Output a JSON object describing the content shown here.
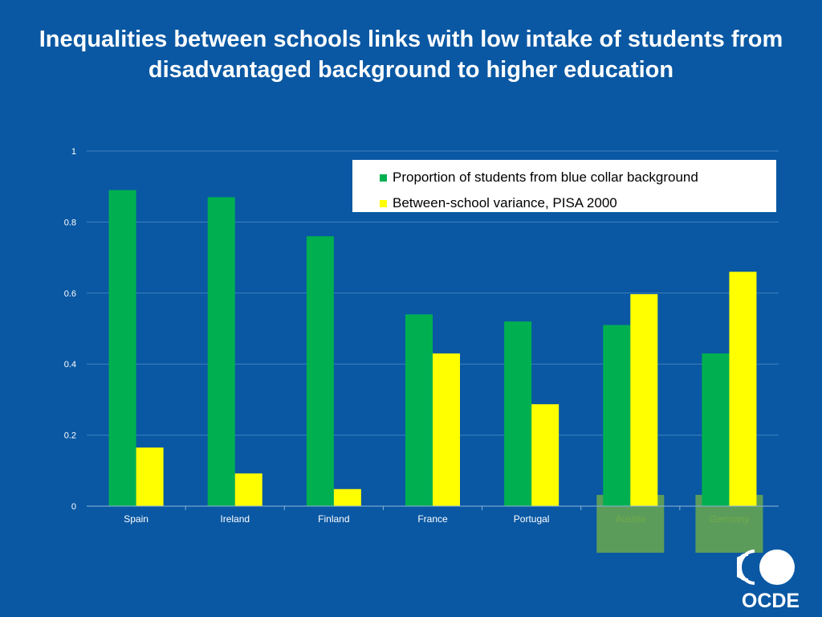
{
  "title": "Inequalities between schools links with low intake of students from disadvantaged background to higher education",
  "colors": {
    "background": "#0a58a3",
    "series_green": "#00b050",
    "series_yellow": "#ffff00",
    "highlight": "#6aa84f",
    "highlight_text": "#70ad47"
  },
  "logo": {
    "text": "OCDE",
    "icon": "oecd-logo-icon"
  },
  "chart_data": {
    "type": "bar",
    "categories": [
      "Spain",
      "Ireland",
      "Finland",
      "France",
      "Portugal",
      "Austria",
      "Germany"
    ],
    "series": [
      {
        "name": "Proportion of students from blue collar background",
        "values": [
          0.89,
          0.87,
          0.76,
          0.54,
          0.52,
          0.51,
          0.43
        ]
      },
      {
        "name": "Between-school variance, PISA 2000",
        "values": [
          0.165,
          0.092,
          0.048,
          0.43,
          0.287,
          0.597,
          0.66
        ]
      }
    ],
    "ylim": [
      0,
      1
    ],
    "yticks": [
      "0",
      "0.2",
      "0.4",
      "0.6",
      "0.8",
      "1"
    ],
    "grid": true,
    "legend_position": "top-right",
    "highlighted_categories": [
      "Austria",
      "Germany"
    ]
  }
}
